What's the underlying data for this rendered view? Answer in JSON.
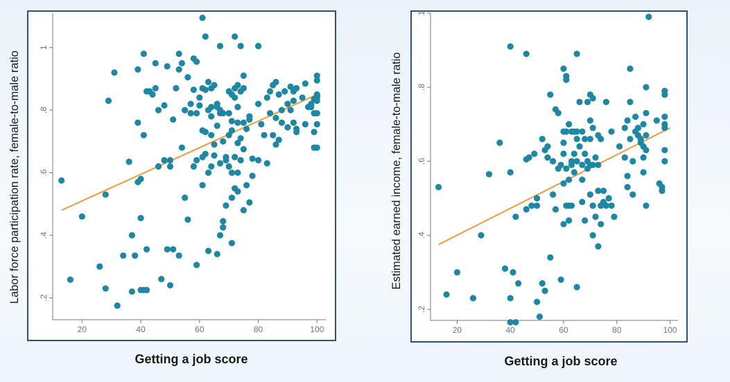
{
  "colors": {
    "frame": "#2e4f86",
    "point": "#1e87a3",
    "trend": "#f39a3a",
    "axis": "#777777"
  },
  "chart_data": [
    {
      "type": "scatter",
      "title": "",
      "xlabel": "Getting a job score",
      "ylabel": "Labor force participation rate, female-to-male ratio",
      "xlim": [
        10,
        103
      ],
      "ylim": [
        0.13,
        1.11
      ],
      "xticks": [
        20,
        40,
        60,
        80,
        100
      ],
      "xtick_labels": [
        "20",
        "40",
        "60",
        "80",
        "100"
      ],
      "yticks": [
        0.2,
        0.4,
        0.6,
        0.8,
        1.0
      ],
      "ytick_labels": [
        ".2",
        ".4",
        ".6",
        ".8",
        "1"
      ],
      "trendline": {
        "x": [
          13,
          100
        ],
        "y": [
          0.48,
          0.85
        ]
      },
      "points": [
        [
          13,
          0.575
        ],
        [
          16,
          0.258
        ],
        [
          20,
          0.46
        ],
        [
          26,
          0.3
        ],
        [
          28,
          0.53
        ],
        [
          28,
          0.23
        ],
        [
          29,
          0.83
        ],
        [
          31,
          0.92
        ],
        [
          32,
          0.175
        ],
        [
          34,
          0.335
        ],
        [
          36,
          0.635
        ],
        [
          37,
          0.22
        ],
        [
          37,
          0.4
        ],
        [
          38,
          0.335
        ],
        [
          39,
          0.57
        ],
        [
          39,
          0.76
        ],
        [
          39,
          0.93
        ],
        [
          40,
          0.58
        ],
        [
          40,
          0.225
        ],
        [
          40,
          0.455
        ],
        [
          41,
          0.225
        ],
        [
          41,
          0.72
        ],
        [
          41,
          0.98
        ],
        [
          42,
          0.86
        ],
        [
          42,
          0.225
        ],
        [
          42,
          0.355
        ],
        [
          43,
          0.86
        ],
        [
          44,
          0.85
        ],
        [
          45,
          0.95
        ],
        [
          45,
          0.87
        ],
        [
          46,
          0.8
        ],
        [
          46,
          0.62
        ],
        [
          47,
          0.26
        ],
        [
          48,
          0.64
        ],
        [
          48,
          0.815
        ],
        [
          49,
          0.94
        ],
        [
          49,
          0.355
        ],
        [
          50,
          0.24
        ],
        [
          50,
          0.62
        ],
        [
          50,
          0.64
        ],
        [
          51,
          0.77
        ],
        [
          51,
          0.355
        ],
        [
          52,
          0.87
        ],
        [
          53,
          0.93
        ],
        [
          53,
          0.98
        ],
        [
          53,
          0.335
        ],
        [
          54,
          0.68
        ],
        [
          54,
          0.95
        ],
        [
          55,
          0.52
        ],
        [
          55,
          0.8
        ],
        [
          56,
          0.45
        ],
        [
          56,
          0.905
        ],
        [
          57,
          0.79
        ],
        [
          57,
          0.82
        ],
        [
          58,
          0.865
        ],
        [
          58,
          0.965
        ],
        [
          58,
          0.62
        ],
        [
          59,
          0.305
        ],
        [
          59,
          0.64
        ],
        [
          59,
          0.79
        ],
        [
          59,
          0.955
        ],
        [
          60,
          0.84
        ],
        [
          60,
          0.815
        ],
        [
          61,
          1.095
        ],
        [
          61,
          0.87
        ],
        [
          61,
          0.735
        ],
        [
          61,
          0.56
        ],
        [
          61,
          0.65
        ],
        [
          62,
          1.035
        ],
        [
          62,
          0.865
        ],
        [
          62,
          0.73
        ],
        [
          62,
          0.66
        ],
        [
          63,
          0.89
        ],
        [
          63,
          0.35
        ],
        [
          63,
          0.8
        ],
        [
          63,
          0.6
        ],
        [
          64,
          0.87
        ],
        [
          64,
          0.81
        ],
        [
          64,
          0.78
        ],
        [
          64,
          0.72
        ],
        [
          64,
          0.62
        ],
        [
          65,
          0.88
        ],
        [
          65,
          0.69
        ],
        [
          65,
          0.655
        ],
        [
          66,
          0.81
        ],
        [
          66,
          0.75
        ],
        [
          66,
          0.82
        ],
        [
          66,
          0.34
        ],
        [
          67,
          1.005
        ],
        [
          67,
          0.79
        ],
        [
          67,
          0.63
        ],
        [
          67,
          0.4
        ],
        [
          67,
          0.8
        ],
        [
          68,
          0.7
        ],
        [
          68,
          0.445
        ],
        [
          68,
          0.425
        ],
        [
          68,
          0.79
        ],
        [
          69,
          0.495
        ],
        [
          69,
          0.65
        ],
        [
          69,
          0.64
        ],
        [
          70,
          0.86
        ],
        [
          70,
          0.79
        ],
        [
          70,
          0.72
        ],
        [
          70,
          0.62
        ],
        [
          71,
          0.6
        ],
        [
          71,
          0.85
        ],
        [
          71,
          0.765
        ],
        [
          71,
          0.735
        ],
        [
          71,
          0.52
        ],
        [
          71,
          0.375
        ],
        [
          72,
          1.035
        ],
        [
          72,
          0.87
        ],
        [
          72,
          0.84
        ],
        [
          72,
          0.65
        ],
        [
          72,
          0.55
        ],
        [
          73,
          0.88
        ],
        [
          73,
          0.76
        ],
        [
          73,
          0.81
        ],
        [
          73,
          0.695
        ],
        [
          73,
          0.6
        ],
        [
          73,
          0.54
        ],
        [
          74,
          1.005
        ],
        [
          74,
          0.86
        ],
        [
          74,
          0.71
        ],
        [
          74,
          0.64
        ],
        [
          75,
          0.91
        ],
        [
          75,
          0.87
        ],
        [
          75,
          0.76
        ],
        [
          75,
          0.675
        ],
        [
          75,
          0.48
        ],
        [
          76,
          0.56
        ],
        [
          76,
          0.74
        ],
        [
          77,
          0.505
        ],
        [
          77,
          0.77
        ],
        [
          77,
          0.78
        ],
        [
          78,
          0.645
        ],
        [
          78,
          0.59
        ],
        [
          80,
          1.005
        ],
        [
          80,
          0.82
        ],
        [
          80,
          0.64
        ],
        [
          81,
          0.755
        ],
        [
          82,
          0.72
        ],
        [
          83,
          0.84
        ],
        [
          83,
          0.63
        ],
        [
          84,
          0.86
        ],
        [
          84,
          0.79
        ],
        [
          85,
          0.88
        ],
        [
          85,
          0.72
        ],
        [
          86,
          0.89
        ],
        [
          86,
          0.775
        ],
        [
          86,
          0.69
        ],
        [
          87,
          0.85
        ],
        [
          87,
          0.705
        ],
        [
          88,
          0.8
        ],
        [
          88,
          0.76
        ],
        [
          89,
          0.86
        ],
        [
          90,
          0.745
        ],
        [
          90,
          0.82
        ],
        [
          91,
          0.875
        ],
        [
          91,
          0.8
        ],
        [
          92,
          0.83
        ],
        [
          92,
          0.86
        ],
        [
          92,
          0.76
        ],
        [
          93,
          0.87
        ],
        [
          93,
          0.74
        ],
        [
          93,
          0.73
        ],
        [
          95,
          0.84
        ],
        [
          96,
          0.885
        ],
        [
          96,
          0.755
        ],
        [
          97,
          0.81
        ],
        [
          98,
          0.82
        ],
        [
          98,
          0.81
        ],
        [
          99,
          0.79
        ],
        [
          99,
          0.835
        ],
        [
          99,
          0.73
        ],
        [
          99,
          0.68
        ],
        [
          100,
          0.91
        ],
        [
          100,
          0.895
        ],
        [
          100,
          0.85
        ],
        [
          100,
          0.845
        ],
        [
          100,
          0.84
        ],
        [
          100,
          0.83
        ],
        [
          100,
          0.79
        ],
        [
          100,
          0.755
        ],
        [
          100,
          0.68
        ]
      ]
    },
    {
      "type": "scatter",
      "title": "",
      "xlabel": "Getting a job score",
      "ylabel": "Estimated earned income, female-to-male ratio",
      "xlim": [
        10,
        103
      ],
      "ylim": [
        0.17,
        1.0
      ],
      "xticks": [
        20,
        40,
        60,
        80,
        100
      ],
      "xtick_labels": [
        "20",
        "40",
        "60",
        "80",
        "100"
      ],
      "yticks": [
        0.2,
        0.4,
        0.6,
        0.8,
        1.0
      ],
      "ytick_labels": [
        ".2",
        ".4",
        ".6",
        ".8",
        "1"
      ],
      "trendline": {
        "x": [
          13,
          100
        ],
        "y": [
          0.375,
          0.69
        ]
      },
      "points": [
        [
          13,
          0.53
        ],
        [
          16,
          0.24
        ],
        [
          20,
          0.3
        ],
        [
          26,
          0.23
        ],
        [
          29,
          0.4
        ],
        [
          32,
          0.565
        ],
        [
          36,
          0.65
        ],
        [
          38,
          0.31
        ],
        [
          40,
          0.57
        ],
        [
          40,
          0.23
        ],
        [
          40,
          0.91
        ],
        [
          40,
          0.165
        ],
        [
          41,
          0.3
        ],
        [
          42,
          0.165
        ],
        [
          42,
          0.45
        ],
        [
          43,
          0.27
        ],
        [
          46,
          0.89
        ],
        [
          46,
          0.47
        ],
        [
          46,
          0.605
        ],
        [
          47,
          0.61
        ],
        [
          48,
          0.48
        ],
        [
          49,
          0.62
        ],
        [
          50,
          0.5
        ],
        [
          50,
          0.22
        ],
        [
          50,
          0.48
        ],
        [
          51,
          0.18
        ],
        [
          52,
          0.27
        ],
        [
          52,
          0.66
        ],
        [
          53,
          0.25
        ],
        [
          53,
          0.63
        ],
        [
          54,
          0.64
        ],
        [
          54,
          0.61
        ],
        [
          55,
          0.78
        ],
        [
          55,
          0.34
        ],
        [
          56,
          0.6
        ],
        [
          56,
          0.51
        ],
        [
          57,
          0.47
        ],
        [
          57,
          0.74
        ],
        [
          58,
          0.58
        ],
        [
          58,
          0.73
        ],
        [
          59,
          0.59
        ],
        [
          59,
          0.28
        ],
        [
          60,
          0.85
        ],
        [
          60,
          0.68
        ],
        [
          60,
          0.65
        ],
        [
          60,
          0.62
        ],
        [
          60,
          0.54
        ],
        [
          60,
          0.43
        ],
        [
          61,
          0.82
        ],
        [
          61,
          0.83
        ],
        [
          61,
          0.68
        ],
        [
          61,
          0.58
        ],
        [
          61,
          0.48
        ],
        [
          62,
          0.7
        ],
        [
          62,
          0.55
        ],
        [
          62,
          0.48
        ],
        [
          62,
          0.44
        ],
        [
          63,
          0.68
        ],
        [
          63,
          0.6
        ],
        [
          63,
          0.59
        ],
        [
          63,
          0.48
        ],
        [
          64,
          0.68
        ],
        [
          64,
          0.62
        ],
        [
          64,
          0.57
        ],
        [
          65,
          0.68
        ],
        [
          65,
          0.66
        ],
        [
          65,
          0.6
        ],
        [
          65,
          0.26
        ],
        [
          65,
          0.89
        ],
        [
          66,
          0.76
        ],
        [
          66,
          0.64
        ],
        [
          67,
          0.68
        ],
        [
          67,
          0.59
        ],
        [
          67,
          0.55
        ],
        [
          67,
          0.49
        ],
        [
          68,
          0.66
        ],
        [
          68,
          0.62
        ],
        [
          68,
          0.44
        ],
        [
          69,
          0.76
        ],
        [
          69,
          0.6
        ],
        [
          69,
          0.58
        ],
        [
          70,
          0.78
        ],
        [
          70,
          0.71
        ],
        [
          70,
          0.66
        ],
        [
          70,
          0.59
        ],
        [
          70,
          0.51
        ],
        [
          71,
          0.77
        ],
        [
          71,
          0.69
        ],
        [
          71,
          0.59
        ],
        [
          71,
          0.48
        ],
        [
          71,
          0.4
        ],
        [
          72,
          0.61
        ],
        [
          72,
          0.45
        ],
        [
          73,
          0.67
        ],
        [
          73,
          0.59
        ],
        [
          73,
          0.52
        ],
        [
          73,
          0.37
        ],
        [
          74,
          0.66
        ],
        [
          74,
          0.48
        ],
        [
          74,
          0.43
        ],
        [
          75,
          0.49
        ],
        [
          75,
          0.52
        ],
        [
          76,
          0.76
        ],
        [
          76,
          0.48
        ],
        [
          77,
          0.5
        ],
        [
          78,
          0.68
        ],
        [
          78,
          0.48
        ],
        [
          79,
          0.45
        ],
        [
          81,
          0.64
        ],
        [
          83,
          0.69
        ],
        [
          83,
          0.61
        ],
        [
          84,
          0.71
        ],
        [
          84,
          0.56
        ],
        [
          84,
          0.53
        ],
        [
          85,
          0.76
        ],
        [
          85,
          0.85
        ],
        [
          85,
          0.66
        ],
        [
          86,
          0.6
        ],
        [
          86,
          0.51
        ],
        [
          87,
          0.68
        ],
        [
          87,
          0.72
        ],
        [
          88,
          0.69
        ],
        [
          88,
          0.67
        ],
        [
          89,
          0.66
        ],
        [
          89,
          0.65
        ],
        [
          90,
          0.7
        ],
        [
          90,
          0.64
        ],
        [
          90,
          0.61
        ],
        [
          90,
          0.57
        ],
        [
          91,
          0.8
        ],
        [
          91,
          0.73
        ],
        [
          91,
          0.67
        ],
        [
          91,
          0.63
        ],
        [
          91,
          0.48
        ],
        [
          92,
          0.99
        ],
        [
          95,
          0.71
        ],
        [
          96,
          0.54
        ],
        [
          97,
          0.53
        ],
        [
          97,
          0.52
        ],
        [
          98,
          0.79
        ],
        [
          98,
          0.78
        ],
        [
          98,
          0.72
        ],
        [
          98,
          0.7
        ],
        [
          98,
          0.69
        ],
        [
          98,
          0.63
        ],
        [
          98,
          0.6
        ]
      ]
    }
  ]
}
